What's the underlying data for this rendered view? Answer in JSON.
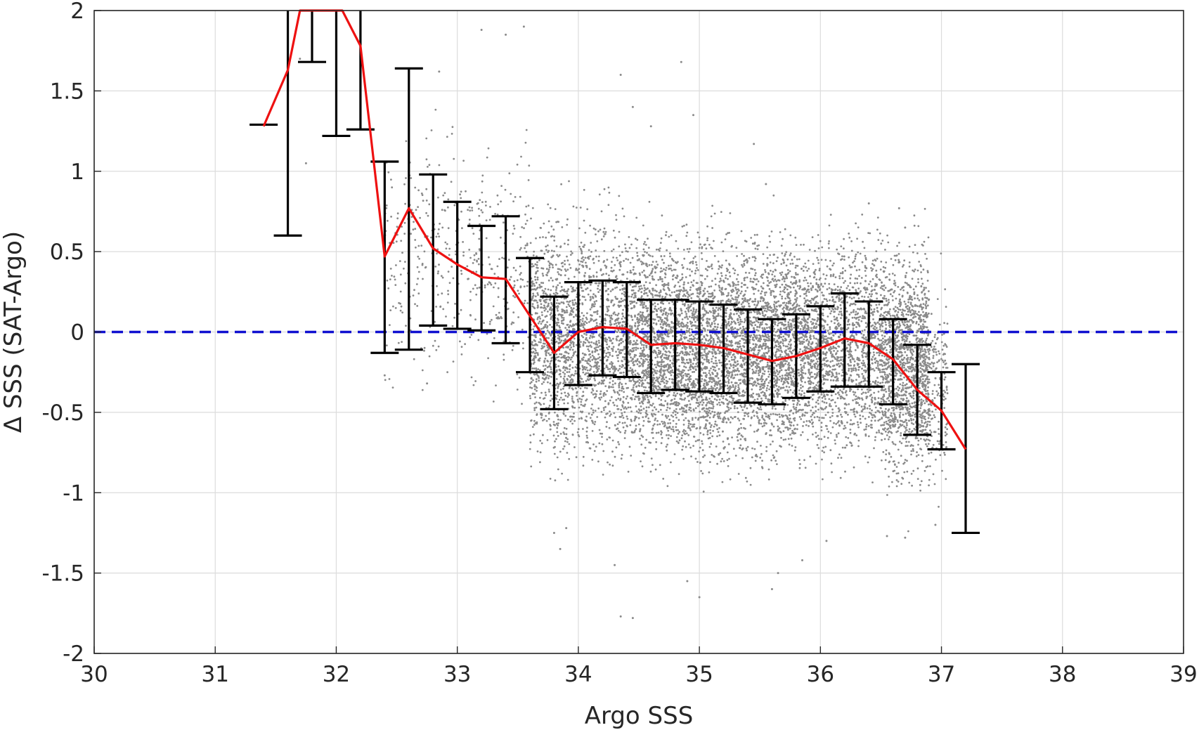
{
  "chart_data": {
    "type": "scatter",
    "title": "",
    "xlabel": "Argo SSS",
    "ylabel": "Δ SSS (SAT-Argo)",
    "xlim": [
      30,
      39
    ],
    "ylim": [
      -2,
      2
    ],
    "xticks": [
      30,
      31,
      32,
      33,
      34,
      35,
      36,
      37,
      38,
      39
    ],
    "yticks": [
      -2,
      -1.5,
      -1,
      -0.5,
      0,
      0.5,
      1,
      1.5,
      2
    ],
    "grid": true,
    "legend": "none",
    "reference_line": {
      "y": 0,
      "style": "dashed",
      "color": "#1010d0"
    },
    "scatter_points": {
      "description_color": "#8a8a8a",
      "clusters": [
        {
          "x_range": [
            32.4,
            33.6
          ],
          "y_center": 0.45,
          "y_spread": 0.35,
          "count": 450
        },
        {
          "x_range": [
            33.6,
            34.5
          ],
          "y_center": -0.05,
          "y_spread": 0.33,
          "count": 2200
        },
        {
          "x_range": [
            34.5,
            36.0
          ],
          "y_center": -0.1,
          "y_spread": 0.31,
          "count": 4800
        },
        {
          "x_range": [
            36.0,
            36.9
          ],
          "y_center": -0.1,
          "y_spread": 0.3,
          "count": 2200
        },
        {
          "x_range": [
            36.5,
            37.05
          ],
          "y_center": -0.35,
          "y_spread": 0.28,
          "count": 700
        }
      ],
      "outliers": [
        [
          31.75,
          1.05
        ],
        [
          31.7,
          1.7
        ],
        [
          32.85,
          1.62
        ],
        [
          33.2,
          1.88
        ],
        [
          33.4,
          1.85
        ],
        [
          33.55,
          1.9
        ],
        [
          34.35,
          1.6
        ],
        [
          34.45,
          1.4
        ],
        [
          34.6,
          1.28
        ],
        [
          34.85,
          1.68
        ],
        [
          34.95,
          1.35
        ],
        [
          35.45,
          1.17
        ],
        [
          35.55,
          0.92
        ],
        [
          36.4,
          0.8
        ],
        [
          36.65,
          0.77
        ],
        [
          36.7,
          0.65
        ],
        [
          33.8,
          -1.25
        ],
        [
          33.85,
          -1.35
        ],
        [
          34.3,
          -1.45
        ],
        [
          34.9,
          -1.55
        ],
        [
          35.0,
          -1.65
        ],
        [
          35.6,
          -1.6
        ],
        [
          35.65,
          -1.5
        ],
        [
          35.85,
          -1.42
        ],
        [
          34.35,
          -1.77
        ],
        [
          34.45,
          -1.78
        ],
        [
          36.7,
          -1.28
        ],
        [
          36.55,
          -1.27
        ],
        [
          36.95,
          -1.2
        ],
        [
          36.05,
          -1.3
        ],
        [
          33.9,
          -1.22
        ],
        [
          32.4,
          -0.27
        ],
        [
          32.75,
          -0.32
        ]
      ]
    },
    "mean_line": {
      "color": "#ee1111",
      "x": [
        31.4,
        31.6,
        31.7,
        32.05,
        32.2,
        32.4,
        32.6,
        32.8,
        33.0,
        33.2,
        33.4,
        33.6,
        33.8,
        34.0,
        34.2,
        34.4,
        34.6,
        34.8,
        35.0,
        35.2,
        35.4,
        35.6,
        35.8,
        36.0,
        36.2,
        36.4,
        36.6,
        36.8,
        37.0,
        37.2
      ],
      "y": [
        1.28,
        1.63,
        2.0,
        2.0,
        1.78,
        0.47,
        0.77,
        0.52,
        0.42,
        0.34,
        0.33,
        0.1,
        -0.13,
        0.0,
        0.03,
        0.02,
        -0.08,
        -0.07,
        -0.08,
        -0.1,
        -0.14,
        -0.18,
        -0.15,
        -0.1,
        -0.04,
        -0.07,
        -0.17,
        -0.36,
        -0.49,
        -0.73
      ]
    },
    "error_bars": {
      "color": "#000000",
      "x": [
        31.6,
        31.8,
        32.0,
        32.2,
        32.4,
        32.6,
        32.8,
        33.0,
        33.2,
        33.4,
        33.6,
        33.8,
        34.0,
        34.2,
        34.4,
        34.6,
        34.8,
        35.0,
        35.2,
        35.4,
        35.6,
        35.8,
        36.0,
        36.2,
        36.4,
        36.6,
        36.8,
        37.0,
        37.2
      ],
      "low": [
        0.6,
        1.68,
        1.22,
        1.26,
        -0.13,
        -0.11,
        0.04,
        0.02,
        0.01,
        -0.07,
        -0.25,
        -0.48,
        -0.33,
        -0.27,
        -0.28,
        -0.38,
        -0.36,
        -0.37,
        -0.38,
        -0.44,
        -0.45,
        -0.41,
        -0.37,
        -0.34,
        -0.34,
        -0.45,
        -0.64,
        -0.73,
        -1.25
      ],
      "high": [
        2.0,
        2.0,
        2.0,
        2.0,
        1.06,
        1.64,
        0.98,
        0.81,
        0.66,
        0.72,
        0.46,
        0.22,
        0.31,
        0.32,
        0.31,
        0.2,
        0.2,
        0.19,
        0.17,
        0.14,
        0.08,
        0.11,
        0.16,
        0.24,
        0.19,
        0.08,
        -0.08,
        -0.25,
        -0.2
      ],
      "caps": [
        {
          "x": 31.4,
          "y": 1.29
        }
      ]
    }
  }
}
